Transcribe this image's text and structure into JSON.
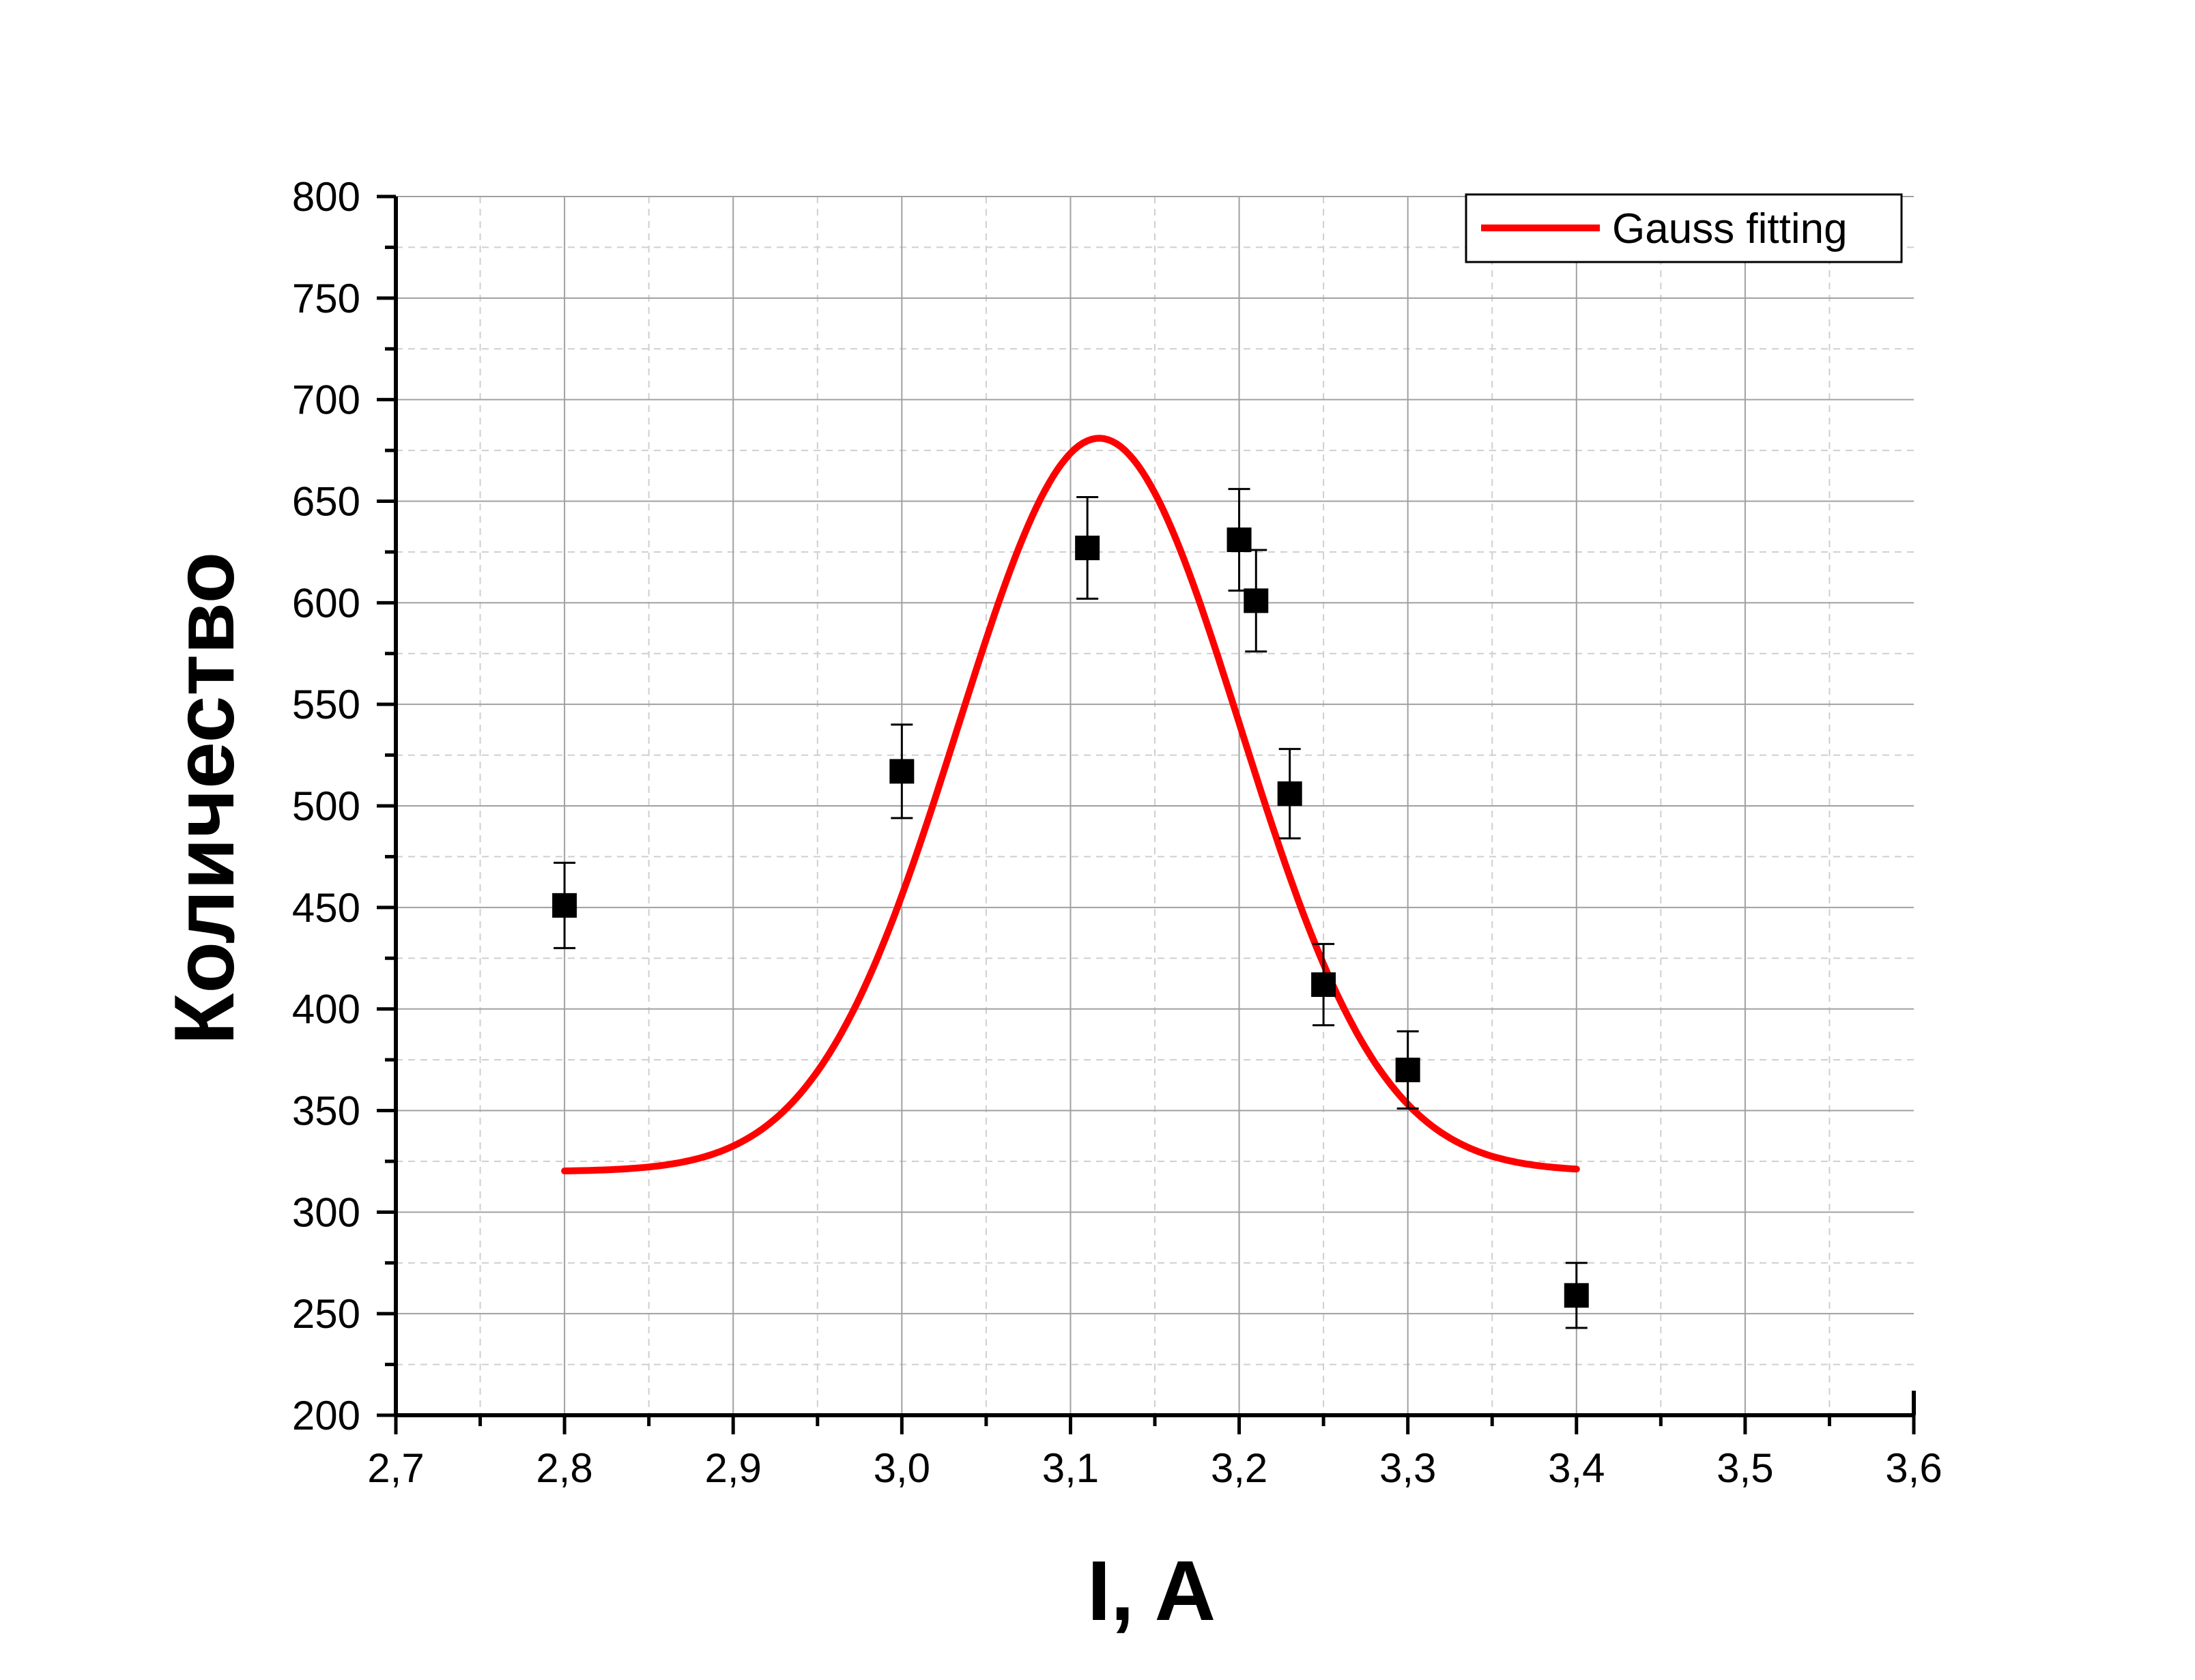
{
  "chart_data": {
    "type": "scatter",
    "xlabel": "I, A",
    "ylabel": "Количество",
    "xlim": [
      2.7,
      3.6
    ],
    "ylim": [
      200,
      800
    ],
    "x_ticks": [
      "2,7",
      "2,8",
      "2,9",
      "3,0",
      "3,1",
      "3,2",
      "3,3",
      "3,4",
      "3,5",
      "3,6"
    ],
    "y_ticks": [
      "200",
      "250",
      "300",
      "350",
      "400",
      "450",
      "500",
      "550",
      "600",
      "650",
      "700",
      "750",
      "800"
    ],
    "grid": true,
    "legend_position": "top-right",
    "points": [
      {
        "x": 2.8,
        "y": 451,
        "err": 21
      },
      {
        "x": 3.0,
        "y": 517,
        "err": 23
      },
      {
        "x": 3.11,
        "y": 627,
        "err": 25
      },
      {
        "x": 3.2,
        "y": 631,
        "err": 25
      },
      {
        "x": 3.21,
        "y": 601,
        "err": 25
      },
      {
        "x": 3.23,
        "y": 506,
        "err": 22
      },
      {
        "x": 3.25,
        "y": 412,
        "err": 20
      },
      {
        "x": 3.3,
        "y": 370,
        "err": 19
      },
      {
        "x": 3.4,
        "y": 259,
        "err": 16
      }
    ],
    "fit": {
      "name": "Gauss fitting",
      "color": "#ff0000",
      "x_range": [
        2.8,
        3.4
      ],
      "y0": 320,
      "amplitude": 361,
      "center": 3.117,
      "sigma": 0.0837
    }
  }
}
